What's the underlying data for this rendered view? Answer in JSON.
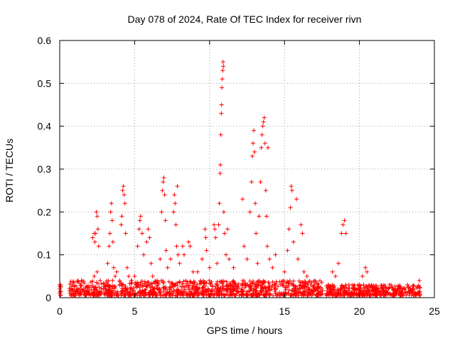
{
  "chart_data": {
    "type": "scatter",
    "title": "Day 078 of 2024, Rate Of TEC Index for receiver rivn",
    "xlabel": "GPS time / hours",
    "ylabel": "ROTI / TECUs",
    "xlim": [
      0,
      25
    ],
    "ylim": [
      0,
      0.6
    ],
    "xticks": [
      0,
      5,
      10,
      15,
      20,
      25
    ],
    "yticks": [
      0,
      0.1,
      0.2,
      0.3,
      0.4,
      0.5,
      0.6
    ],
    "xtick_labels": [
      "0",
      "5",
      "10",
      "15",
      "20",
      "25"
    ],
    "ytick_labels": [
      "0",
      "0.1",
      "0.2",
      "0.3",
      "0.4",
      "0.5",
      "0.6"
    ],
    "grid": true,
    "marker": "+",
    "color": "#ff0000",
    "series": [
      {
        "name": "ROTI",
        "points": [
          [
            0.0,
            0.03
          ],
          [
            0.0,
            0.02
          ],
          [
            0.0,
            0.01
          ],
          [
            0.05,
            0.025
          ],
          [
            0.05,
            0.015
          ],
          [
            0.8,
            0.02
          ],
          [
            1.0,
            0.015
          ],
          [
            1.2,
            0.02
          ],
          [
            1.4,
            0.01
          ],
          [
            1.6,
            0.02
          ],
          [
            1.8,
            0.015
          ],
          [
            2.0,
            0.025
          ],
          [
            2.2,
            0.14
          ],
          [
            2.3,
            0.15
          ],
          [
            2.35,
            0.13
          ],
          [
            2.4,
            0.15
          ],
          [
            2.45,
            0.2
          ],
          [
            2.5,
            0.19
          ],
          [
            2.55,
            0.16
          ],
          [
            2.6,
            0.12
          ],
          [
            2.5,
            0.06
          ],
          [
            2.3,
            0.05
          ],
          [
            2.7,
            0.04
          ],
          [
            3.0,
            0.03
          ],
          [
            3.2,
            0.08
          ],
          [
            3.3,
            0.12
          ],
          [
            3.35,
            0.15
          ],
          [
            3.4,
            0.2
          ],
          [
            3.45,
            0.22
          ],
          [
            3.5,
            0.18
          ],
          [
            3.55,
            0.13
          ],
          [
            3.6,
            0.07
          ],
          [
            3.7,
            0.05
          ],
          [
            3.8,
            0.06
          ],
          [
            4.0,
            0.04
          ],
          [
            4.1,
            0.17
          ],
          [
            4.15,
            0.19
          ],
          [
            4.2,
            0.25
          ],
          [
            4.25,
            0.26
          ],
          [
            4.3,
            0.24
          ],
          [
            4.35,
            0.22
          ],
          [
            4.4,
            0.15
          ],
          [
            4.5,
            0.07
          ],
          [
            4.6,
            0.05
          ],
          [
            4.8,
            0.04
          ],
          [
            5.0,
            0.05
          ],
          [
            5.2,
            0.12
          ],
          [
            5.3,
            0.16
          ],
          [
            5.35,
            0.18
          ],
          [
            5.4,
            0.19
          ],
          [
            5.5,
            0.15
          ],
          [
            5.6,
            0.1
          ],
          [
            5.8,
            0.13
          ],
          [
            5.9,
            0.16
          ],
          [
            6.0,
            0.14
          ],
          [
            6.1,
            0.08
          ],
          [
            6.2,
            0.05
          ],
          [
            6.5,
            0.04
          ],
          [
            6.7,
            0.09
          ],
          [
            6.8,
            0.2
          ],
          [
            6.85,
            0.25
          ],
          [
            6.9,
            0.27
          ],
          [
            6.95,
            0.28
          ],
          [
            7.0,
            0.24
          ],
          [
            7.05,
            0.18
          ],
          [
            7.1,
            0.11
          ],
          [
            7.2,
            0.07
          ],
          [
            7.4,
            0.09
          ],
          [
            7.6,
            0.2
          ],
          [
            7.65,
            0.24
          ],
          [
            7.7,
            0.22
          ],
          [
            7.75,
            0.17
          ],
          [
            7.8,
            0.12
          ],
          [
            7.85,
            0.26
          ],
          [
            7.9,
            0.1
          ],
          [
            8.0,
            0.08
          ],
          [
            8.2,
            0.12
          ],
          [
            8.3,
            0.1
          ],
          [
            8.6,
            0.13
          ],
          [
            8.7,
            0.12
          ],
          [
            8.9,
            0.06
          ],
          [
            9.2,
            0.06
          ],
          [
            9.5,
            0.09
          ],
          [
            9.7,
            0.16
          ],
          [
            9.75,
            0.14
          ],
          [
            9.8,
            0.11
          ],
          [
            10.0,
            0.07
          ],
          [
            10.3,
            0.17
          ],
          [
            10.35,
            0.16
          ],
          [
            10.4,
            0.14
          ],
          [
            10.5,
            0.08
          ],
          [
            10.6,
            0.17
          ],
          [
            10.65,
            0.22
          ],
          [
            10.7,
            0.29
          ],
          [
            10.72,
            0.31
          ],
          [
            10.75,
            0.38
          ],
          [
            10.78,
            0.43
          ],
          [
            10.8,
            0.45
          ],
          [
            10.82,
            0.49
          ],
          [
            10.85,
            0.51
          ],
          [
            10.88,
            0.53
          ],
          [
            10.9,
            0.55
          ],
          [
            10.92,
            0.54
          ],
          [
            10.95,
            0.2
          ],
          [
            11.0,
            0.15
          ],
          [
            11.1,
            0.1
          ],
          [
            11.2,
            0.16
          ],
          [
            11.3,
            0.09
          ],
          [
            11.6,
            0.07
          ],
          [
            12.2,
            0.23
          ],
          [
            12.3,
            0.12
          ],
          [
            12.5,
            0.09
          ],
          [
            12.7,
            0.2
          ],
          [
            12.8,
            0.27
          ],
          [
            12.85,
            0.33
          ],
          [
            12.9,
            0.36
          ],
          [
            12.95,
            0.39
          ],
          [
            13.0,
            0.34
          ],
          [
            13.05,
            0.22
          ],
          [
            13.1,
            0.15
          ],
          [
            13.2,
            0.08
          ],
          [
            13.3,
            0.19
          ],
          [
            13.4,
            0.27
          ],
          [
            13.45,
            0.35
          ],
          [
            13.5,
            0.38
          ],
          [
            13.55,
            0.4
          ],
          [
            13.6,
            0.41
          ],
          [
            13.65,
            0.42
          ],
          [
            13.7,
            0.36
          ],
          [
            13.75,
            0.25
          ],
          [
            13.8,
            0.19
          ],
          [
            13.85,
            0.12
          ],
          [
            13.9,
            0.35
          ],
          [
            14.0,
            0.09
          ],
          [
            14.2,
            0.07
          ],
          [
            14.4,
            0.1
          ],
          [
            15.0,
            0.06
          ],
          [
            15.2,
            0.11
          ],
          [
            15.3,
            0.16
          ],
          [
            15.4,
            0.21
          ],
          [
            15.45,
            0.26
          ],
          [
            15.5,
            0.25
          ],
          [
            15.6,
            0.13
          ],
          [
            15.8,
            0.23
          ],
          [
            15.9,
            0.09
          ],
          [
            16.1,
            0.17
          ],
          [
            16.2,
            0.15
          ],
          [
            16.3,
            0.06
          ],
          [
            16.5,
            0.05
          ],
          [
            17.0,
            0.02
          ],
          [
            17.5,
            0.02
          ],
          [
            17.8,
            0.01
          ],
          [
            18.2,
            0.06
          ],
          [
            18.4,
            0.05
          ],
          [
            18.6,
            0.08
          ],
          [
            18.8,
            0.15
          ],
          [
            18.9,
            0.17
          ],
          [
            19.0,
            0.18
          ],
          [
            19.1,
            0.15
          ],
          [
            19.3,
            0.03
          ],
          [
            19.6,
            0.02
          ],
          [
            20.0,
            0.03
          ],
          [
            20.2,
            0.05
          ],
          [
            20.4,
            0.07
          ],
          [
            20.5,
            0.06
          ],
          [
            20.8,
            0.03
          ],
          [
            21.2,
            0.02
          ],
          [
            21.6,
            0.02
          ],
          [
            22.0,
            0.03
          ],
          [
            22.4,
            0.02
          ],
          [
            22.8,
            0.02
          ],
          [
            23.2,
            0.03
          ],
          [
            23.6,
            0.02
          ],
          [
            24.0,
            0.04
          ]
        ]
      }
    ],
    "dense_segments": [
      {
        "x0": 0.0,
        "x1": 0.1,
        "ymin": 0.005,
        "ymax": 0.03
      },
      {
        "x0": 0.65,
        "x1": 12.0,
        "ymin": 0.005,
        "ymax": 0.04
      },
      {
        "x0": 12.1,
        "x1": 17.6,
        "ymin": 0.005,
        "ymax": 0.04
      },
      {
        "x0": 17.8,
        "x1": 24.1,
        "ymin": 0.005,
        "ymax": 0.03
      }
    ]
  }
}
